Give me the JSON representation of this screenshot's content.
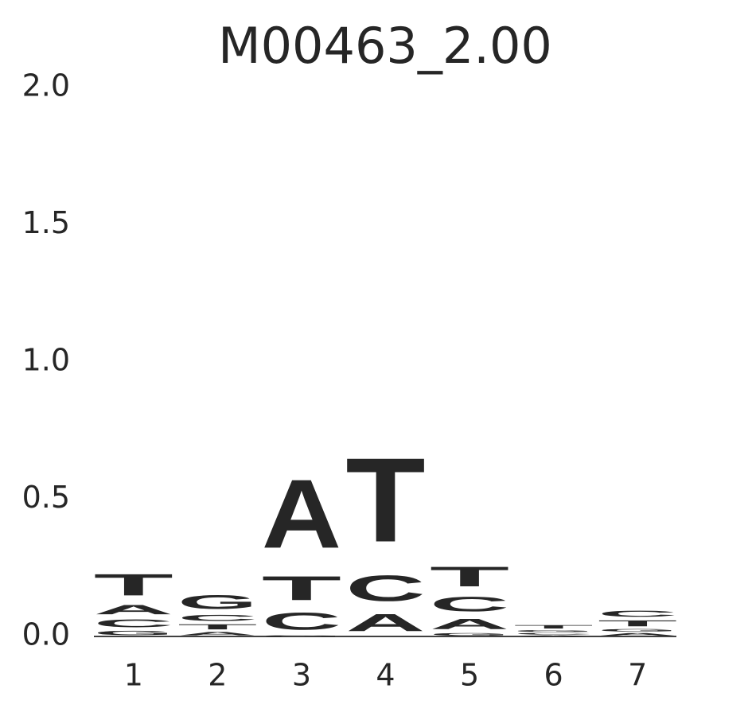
{
  "chart_data": {
    "type": "logo",
    "title": "M00463_2.00",
    "x": [
      1,
      2,
      3,
      4,
      5,
      6,
      7
    ],
    "xlim": [
      0.5,
      7.5
    ],
    "xticks": [
      1,
      2,
      3,
      4,
      5,
      6,
      7
    ],
    "ylim": [
      0,
      2
    ],
    "yticks": [
      {
        "value": 0,
        "label": "0.0"
      },
      0.5,
      {
        "value": 1,
        "label": "1.0"
      },
      1.5,
      {
        "value": 2,
        "label": "2.0"
      }
    ],
    "colors": {
      "A": "#008000",
      "C": "#0000ff",
      "G": "#ffa500",
      "T": "#ff0000"
    },
    "stacks": [
      [
        {
          "letter": "G",
          "value": 0.025
        },
        {
          "letter": "C",
          "value": 0.045
        },
        {
          "letter": "A",
          "value": 0.055
        },
        {
          "letter": "T",
          "value": 0.125
        }
      ],
      [
        {
          "letter": "A",
          "value": 0.02
        },
        {
          "letter": "T",
          "value": 0.03
        },
        {
          "letter": "C",
          "value": 0.035
        },
        {
          "letter": "G",
          "value": 0.08
        }
      ],
      [
        {
          "letter": "G",
          "value": 0.005
        },
        {
          "letter": "C",
          "value": 0.1
        },
        {
          "letter": "T",
          "value": 0.14
        },
        {
          "letter": "A",
          "value": 0.4
        }
      ],
      [
        {
          "letter": "A",
          "value": 0.1
        },
        {
          "letter": "C",
          "value": 0.15
        },
        {
          "letter": "T",
          "value": 0.49
        }
      ],
      [
        {
          "letter": "G",
          "value": 0.015
        },
        {
          "letter": "A",
          "value": 0.06
        },
        {
          "letter": "C",
          "value": 0.085
        },
        {
          "letter": "T",
          "value": 0.115
        }
      ],
      [
        {
          "letter": "A",
          "value": 0.005
        },
        {
          "letter": "C",
          "value": 0.01
        },
        {
          "letter": "G",
          "value": 0.01
        },
        {
          "letter": "T",
          "value": 0.02
        }
      ],
      [
        {
          "letter": "A",
          "value": 0.015
        },
        {
          "letter": "G",
          "value": 0.015
        },
        {
          "letter": "T",
          "value": 0.035
        },
        {
          "letter": "C",
          "value": 0.035
        }
      ]
    ]
  }
}
